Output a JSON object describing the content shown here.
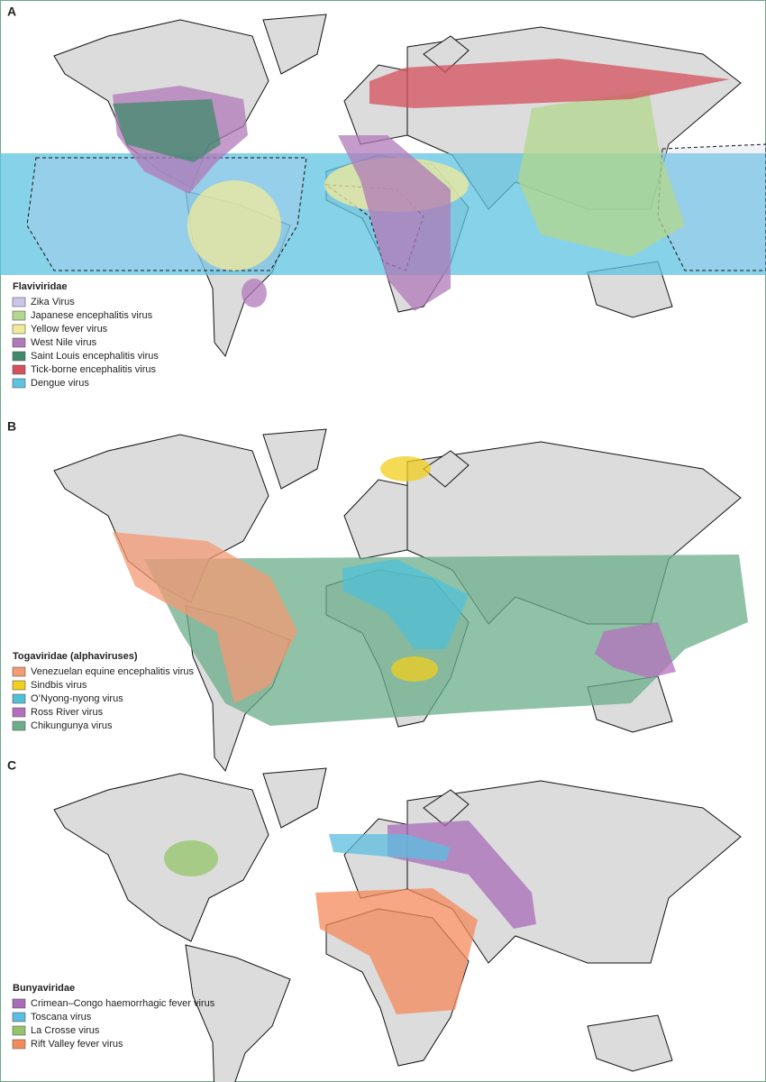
{
  "panels": [
    {
      "label": "A",
      "legend": {
        "title": "Flaviviridae",
        "items": [
          {
            "name": "Zika Virus",
            "color": "#c9c6ea"
          },
          {
            "name": "Japanese encephalitis virus",
            "color": "#b3d78c"
          },
          {
            "name": "Yellow fever virus",
            "color": "#f2ea9a"
          },
          {
            "name": "West Nile virus",
            "color": "#b07ab8"
          },
          {
            "name": "Saint Louis encephalitis virus",
            "color": "#3f8a6a"
          },
          {
            "name": "Tick-borne encephalitis virus",
            "color": "#d4505c"
          },
          {
            "name": "Dengue virus",
            "color": "#5ec3e0"
          }
        ]
      }
    },
    {
      "label": "B",
      "legend": {
        "title": "Togaviridae (alphaviruses)",
        "items": [
          {
            "name": "Venezuelan equine encephalitis virus",
            "color": "#f49a74"
          },
          {
            "name": "Sindbis virus",
            "color": "#f2cf1c"
          },
          {
            "name": "O’Nyong-nyong virus",
            "color": "#4fc0d8"
          },
          {
            "name": "Ross River virus",
            "color": "#b46fbe"
          },
          {
            "name": "Chikungunya virus",
            "color": "#6aae8a"
          }
        ]
      }
    },
    {
      "label": "C",
      "legend": {
        "title": "Bunyaviridae",
        "items": [
          {
            "name": "Crimean–Congo haemorrhagic fever virus",
            "color": "#a86cb8"
          },
          {
            "name": "Toscana virus",
            "color": "#5bbde0"
          },
          {
            "name": "La Crosse virus",
            "color": "#93c66a"
          },
          {
            "name": "Rift Valley fever virus",
            "color": "#f58a5c"
          }
        ]
      }
    }
  ]
}
